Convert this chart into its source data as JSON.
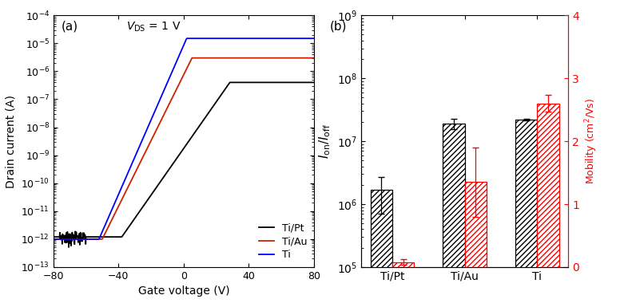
{
  "panel_a": {
    "title_text": "$V_{\\mathrm{DS}}$ = 1 V",
    "xlabel": "Gate voltage (V)",
    "ylabel": "Drain current (A)",
    "xlim": [
      -80,
      80
    ],
    "ylim_log": [
      -13,
      -4
    ],
    "legend_labels": [
      "Ti/Pt",
      "Ti/Au",
      "Ti"
    ],
    "line_colors": [
      "black",
      "#cc2200",
      "blue"
    ],
    "annotation": "(a)"
  },
  "panel_b": {
    "xlabel_labels": [
      "Ti/Pt",
      "Ti/Au",
      "Ti"
    ],
    "ylabel_left": "$I_{\\mathrm{on}}/I_{\\mathrm{off}}$",
    "ylabel_right": "Mobility (cm$^2$/Vs)",
    "ylim_right": [
      0,
      4
    ],
    "ion_ioff_values": [
      1700000.0,
      19000000.0,
      22000000.0
    ],
    "ion_ioff_errors": [
      1000000.0,
      3500000.0,
      700000.0
    ],
    "mobility_values": [
      0.08,
      1.35,
      2.6
    ],
    "mobility_errors": [
      0.04,
      0.55,
      0.13
    ],
    "annotation": "(b)"
  }
}
